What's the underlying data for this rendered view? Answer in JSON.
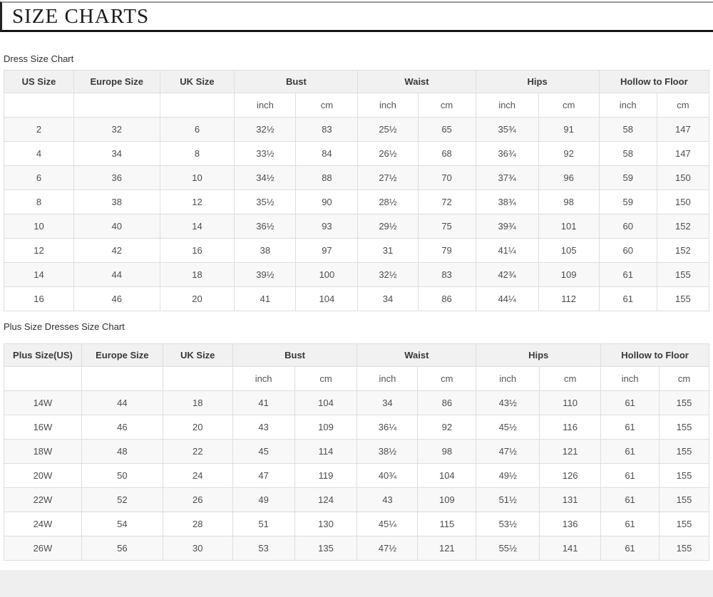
{
  "page": {
    "title": "SIZE CHARTS"
  },
  "colors": {
    "divider": "#141414",
    "table_border": "#dedede",
    "header_bg": "#f1f1f1",
    "stripe_bg": "#f8f8f8",
    "footer_band": "#efefef"
  },
  "tables": [
    {
      "caption": "Dress Size Chart",
      "group_headers": [
        "US Size",
        "Europe Size",
        "UK Size",
        "Bust",
        "Waist",
        "Hips",
        "Hollow to Floor"
      ],
      "unit_headers": [
        "inch",
        "cm",
        "inch",
        "cm",
        "inch",
        "cm",
        "inch",
        "cm"
      ],
      "rows": [
        [
          "2",
          "32",
          "6",
          "32½",
          "83",
          "25½",
          "65",
          "35¾",
          "91",
          "58",
          "147"
        ],
        [
          "4",
          "34",
          "8",
          "33½",
          "84",
          "26½",
          "68",
          "36¾",
          "92",
          "58",
          "147"
        ],
        [
          "6",
          "36",
          "10",
          "34½",
          "88",
          "27½",
          "70",
          "37¾",
          "96",
          "59",
          "150"
        ],
        [
          "8",
          "38",
          "12",
          "35½",
          "90",
          "28½",
          "72",
          "38¾",
          "98",
          "59",
          "150"
        ],
        [
          "10",
          "40",
          "14",
          "36½",
          "93",
          "29½",
          "75",
          "39¾",
          "101",
          "60",
          "152"
        ],
        [
          "12",
          "42",
          "16",
          "38",
          "97",
          "31",
          "79",
          "41¼",
          "105",
          "60",
          "152"
        ],
        [
          "14",
          "44",
          "18",
          "39½",
          "100",
          "32½",
          "83",
          "42¾",
          "109",
          "61",
          "155"
        ],
        [
          "16",
          "46",
          "20",
          "41",
          "104",
          "34",
          "86",
          "44¼",
          "112",
          "61",
          "155"
        ]
      ]
    },
    {
      "caption": "Plus Size Dresses Size Chart",
      "group_headers": [
        "Plus Size(US)",
        "Europe Size",
        "UK Size",
        "Bust",
        "Waist",
        "Hips",
        "Hollow to Floor"
      ],
      "unit_headers": [
        "inch",
        "cm",
        "inch",
        "cm",
        "inch",
        "cm",
        "inch",
        "cm"
      ],
      "rows": [
        [
          "14W",
          "44",
          "18",
          "41",
          "104",
          "34",
          "86",
          "43½",
          "110",
          "61",
          "155"
        ],
        [
          "16W",
          "46",
          "20",
          "43",
          "109",
          "36¼",
          "92",
          "45½",
          "116",
          "61",
          "155"
        ],
        [
          "18W",
          "48",
          "22",
          "45",
          "114",
          "38½",
          "98",
          "47½",
          "121",
          "61",
          "155"
        ],
        [
          "20W",
          "50",
          "24",
          "47",
          "119",
          "40¾",
          "104",
          "49½",
          "126",
          "61",
          "155"
        ],
        [
          "22W",
          "52",
          "26",
          "49",
          "124",
          "43",
          "109",
          "51½",
          "131",
          "61",
          "155"
        ],
        [
          "24W",
          "54",
          "28",
          "51",
          "130",
          "45¼",
          "115",
          "53½",
          "136",
          "61",
          "155"
        ],
        [
          "26W",
          "56",
          "30",
          "53",
          "135",
          "47½",
          "121",
          "55½",
          "141",
          "61",
          "155"
        ]
      ]
    }
  ]
}
